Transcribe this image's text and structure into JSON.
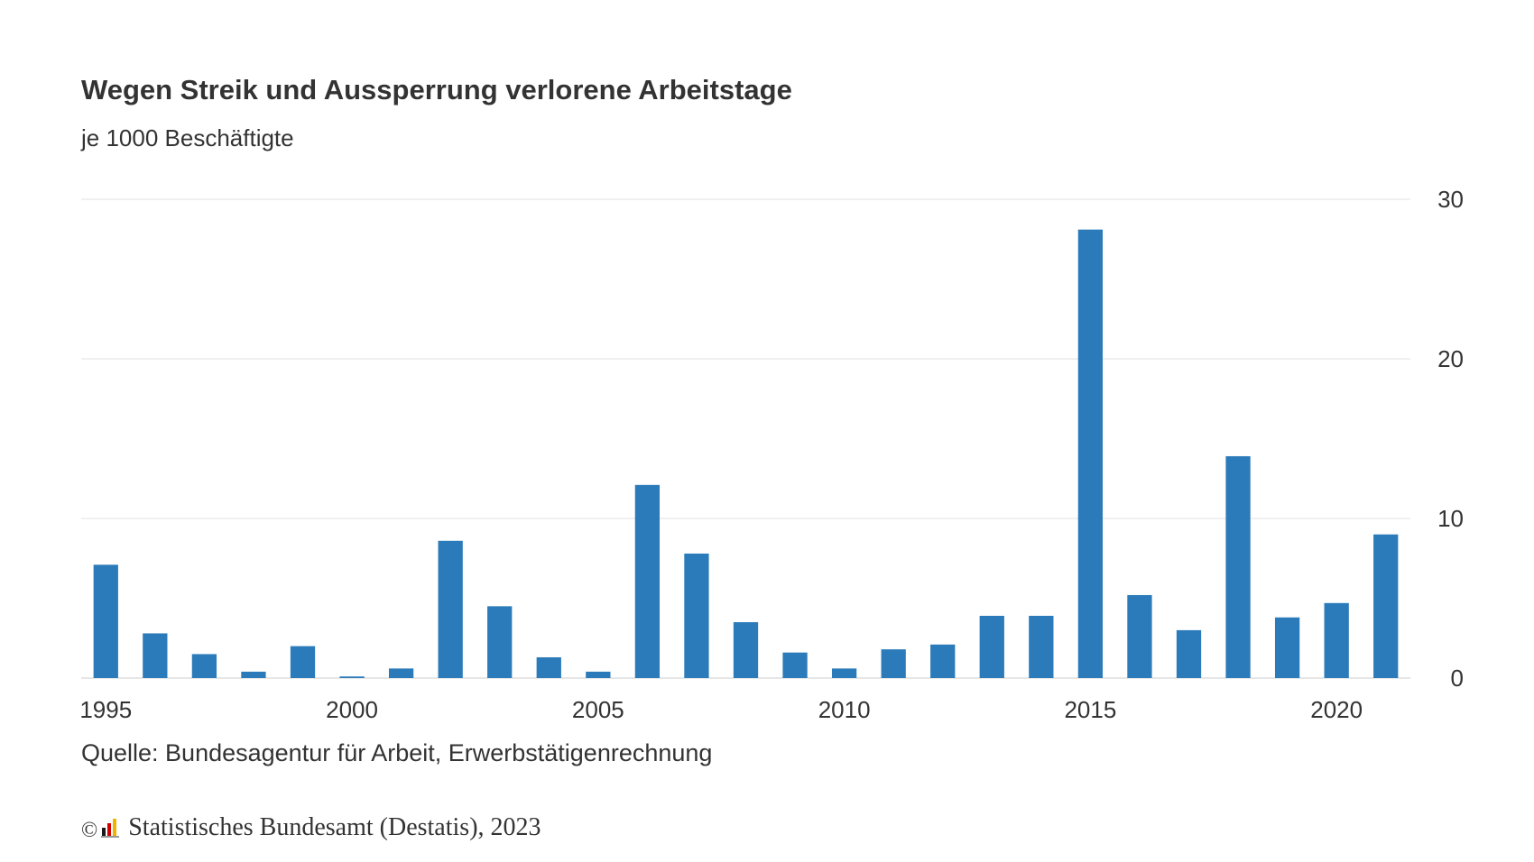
{
  "header": {
    "title": "Wegen Streik und Aussperrung verlorene Arbeitstage",
    "subtitle": "je 1000 Beschäftigte"
  },
  "footer": {
    "source": "Quelle: Bundesagentur für Arbeit, Erwerbstätigenrechnung",
    "copyright_symbol": "©",
    "copyright_text": "Statistisches Bundesamt (Destatis), 2023"
  },
  "chart_data": {
    "type": "bar",
    "title": "Wegen Streik und Aussperrung verlorene Arbeitstage",
    "subtitle": "je 1000 Beschäftigte",
    "xlabel": "",
    "ylabel": "",
    "categories": [
      1995,
      1996,
      1997,
      1998,
      1999,
      2000,
      2001,
      2002,
      2003,
      2004,
      2005,
      2006,
      2007,
      2008,
      2009,
      2010,
      2011,
      2012,
      2013,
      2014,
      2015,
      2016,
      2017,
      2018,
      2019,
      2020,
      2021
    ],
    "values": [
      7.1,
      2.8,
      1.5,
      0.4,
      2.0,
      0.1,
      0.6,
      8.6,
      4.5,
      1.3,
      0.4,
      12.1,
      7.8,
      3.5,
      1.6,
      0.6,
      1.8,
      2.1,
      3.9,
      3.9,
      28.1,
      5.2,
      3.0,
      13.9,
      3.8,
      4.7,
      9.0
    ],
    "ylim": [
      0,
      30
    ],
    "yticks": [
      "0",
      "10",
      "20",
      "30"
    ],
    "xticks": [
      "1995",
      "2000",
      "2005",
      "2010",
      "2015",
      "2020"
    ],
    "y_axis_position": "right",
    "grid": true,
    "bar_color": "#2b7bba",
    "grid_color": "#e0e0e0"
  }
}
